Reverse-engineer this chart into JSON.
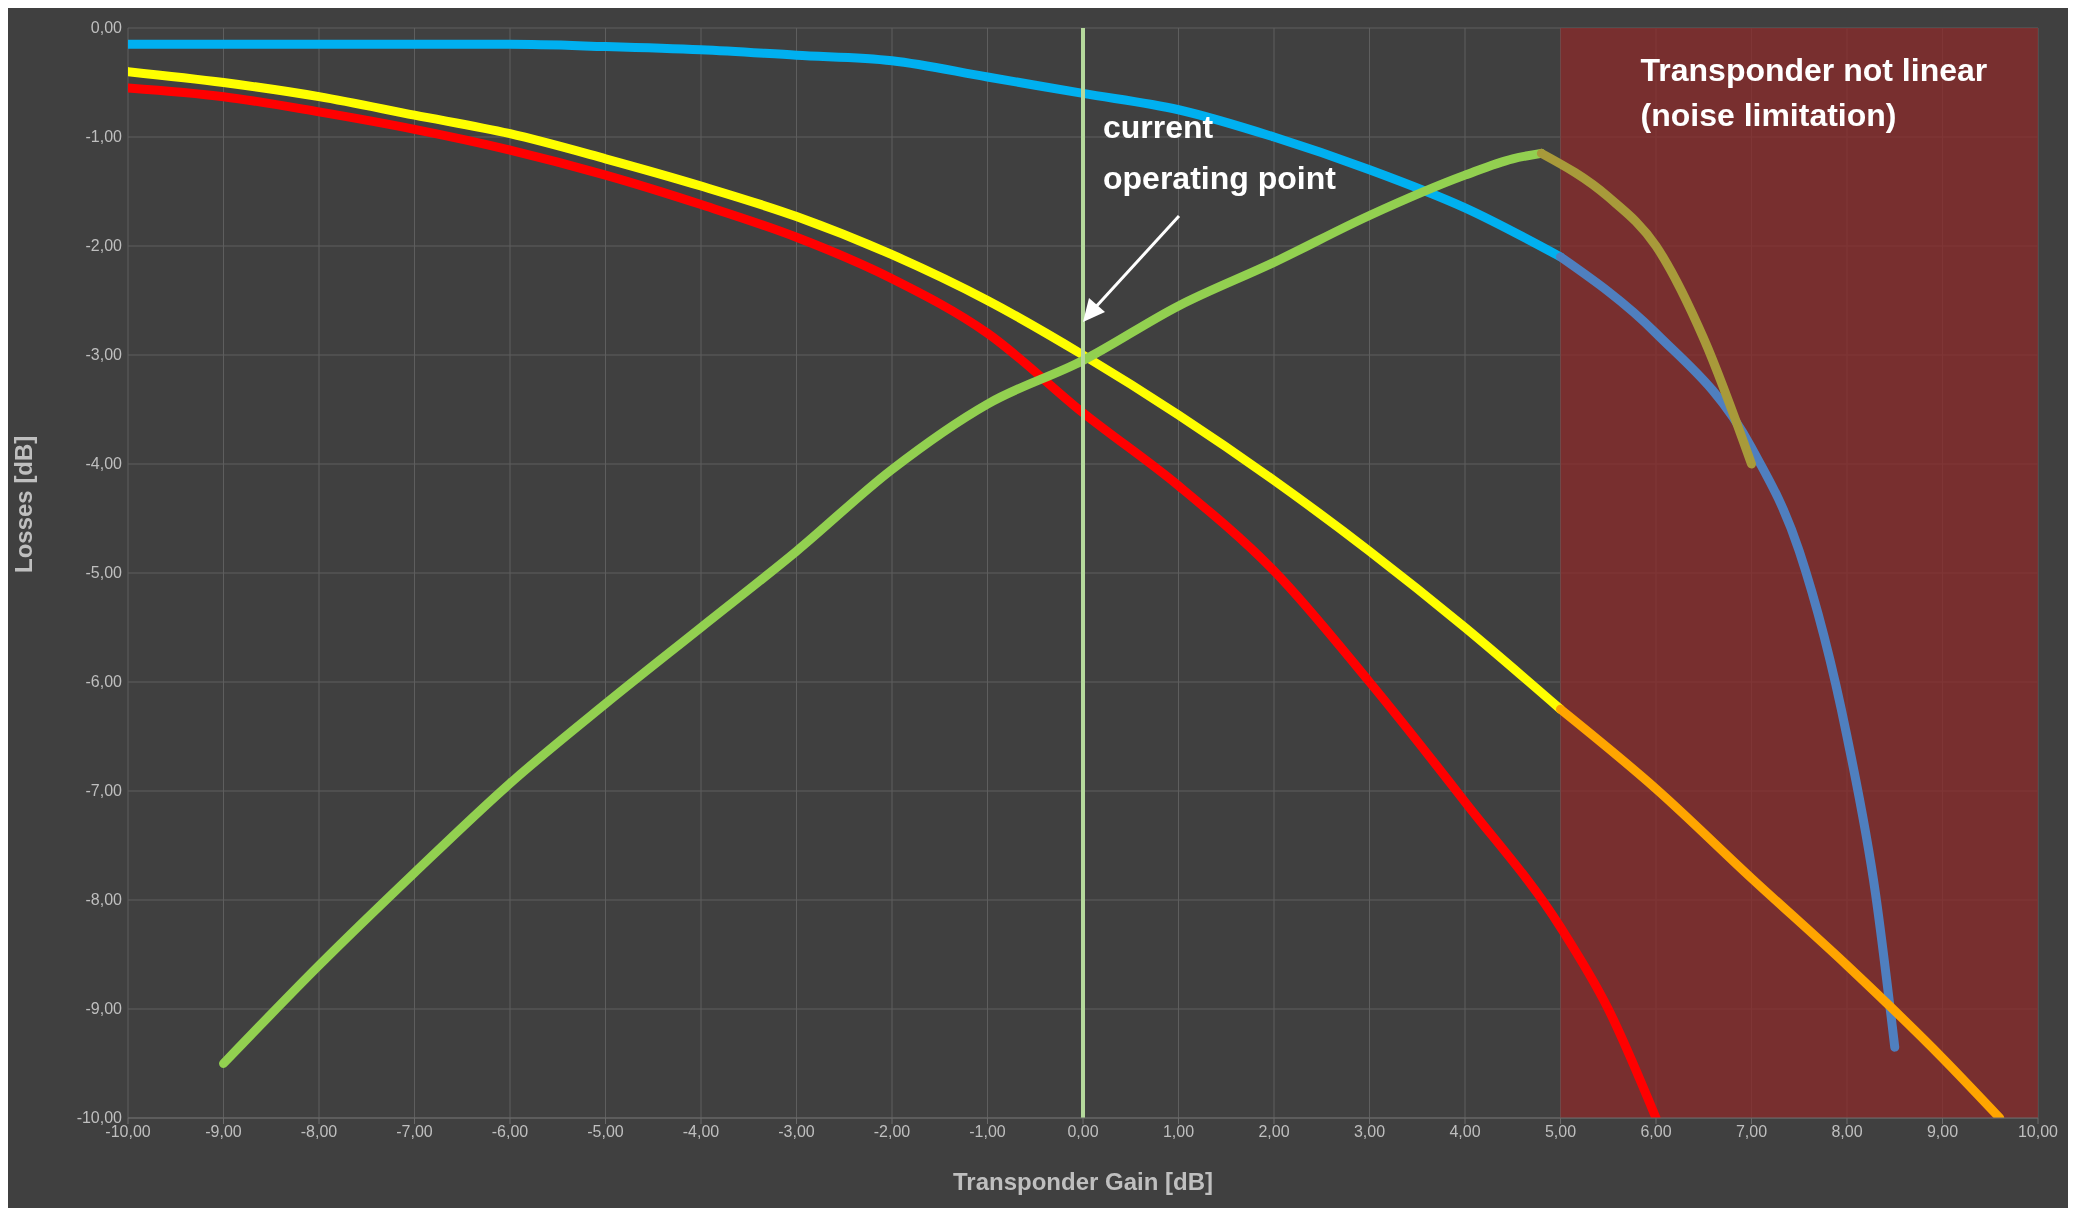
{
  "chart_data": {
    "type": "line",
    "xlabel": "Transponder Gain [dB]",
    "ylabel": "Losses [dB]",
    "xlim": [
      -10,
      10
    ],
    "ylim": [
      -10,
      0
    ],
    "xticks": [
      {
        "value": -10,
        "label": "-10,00"
      },
      {
        "value": -9,
        "label": "-9,00"
      },
      {
        "value": -8,
        "label": "-8,00"
      },
      {
        "value": -7,
        "label": "-7,00"
      },
      {
        "value": -6,
        "label": "-6,00"
      },
      {
        "value": -5,
        "label": "-5,00"
      },
      {
        "value": -4,
        "label": "-4,00"
      },
      {
        "value": -3,
        "label": "-3,00"
      },
      {
        "value": -2,
        "label": "-2,00"
      },
      {
        "value": -1,
        "label": "-1,00"
      },
      {
        "value": 0,
        "label": "0,00"
      },
      {
        "value": 1,
        "label": "1,00"
      },
      {
        "value": 2,
        "label": "2,00"
      },
      {
        "value": 3,
        "label": "3,00"
      },
      {
        "value": 4,
        "label": "4,00"
      },
      {
        "value": 5,
        "label": "5,00"
      },
      {
        "value": 6,
        "label": "6,00"
      },
      {
        "value": 7,
        "label": "7,00"
      },
      {
        "value": 8,
        "label": "8,00"
      },
      {
        "value": 9,
        "label": "9,00"
      },
      {
        "value": 10,
        "label": "10,00"
      }
    ],
    "yticks": [
      {
        "value": 0,
        "label": "0,00"
      },
      {
        "value": -1,
        "label": "-1,00"
      },
      {
        "value": -2,
        "label": "-2,00"
      },
      {
        "value": -3,
        "label": "-3,00"
      },
      {
        "value": -4,
        "label": "-4,00"
      },
      {
        "value": -5,
        "label": "-5,00"
      },
      {
        "value": -6,
        "label": "-6,00"
      },
      {
        "value": -7,
        "label": "-7,00"
      },
      {
        "value": -8,
        "label": "-8,00"
      },
      {
        "value": -9,
        "label": "-9,00"
      },
      {
        "value": -10,
        "label": "-10,00"
      }
    ],
    "grid": true,
    "marker": "none",
    "line_style": "solid",
    "series": [
      {
        "color": "#00b0f0",
        "x": [
          -10,
          -8,
          -6,
          -5,
          -4,
          -3,
          -2,
          -1,
          0,
          1,
          2,
          3,
          4,
          5
        ],
        "values": [
          -0.15,
          -0.15,
          -0.15,
          -0.17,
          -0.2,
          -0.25,
          -0.3,
          -0.45,
          -0.6,
          -0.75,
          -1.0,
          -1.3,
          -1.65,
          -2.1
        ]
      },
      {
        "color": "#4f7fbf",
        "x": [
          5,
          6,
          7,
          7.5,
          8,
          8.3,
          8.5
        ],
        "values": [
          -2.1,
          -2.8,
          -3.85,
          -4.8,
          -6.5,
          -7.95,
          -9.35
        ]
      },
      {
        "color": "#ffff00",
        "x": [
          -10,
          -9,
          -8,
          -7,
          -6,
          -5,
          -4,
          -3,
          -2,
          -1,
          0,
          1,
          2,
          3,
          4,
          5
        ],
        "values": [
          -0.4,
          -0.5,
          -0.63,
          -0.8,
          -0.97,
          -1.2,
          -1.45,
          -1.73,
          -2.08,
          -2.5,
          -3.0,
          -3.55,
          -4.15,
          -4.8,
          -5.5,
          -6.25
        ]
      },
      {
        "color": "#ffa500",
        "x": [
          5,
          6,
          7,
          8,
          9,
          9.6
        ],
        "values": [
          -6.25,
          -6.98,
          -7.8,
          -8.6,
          -9.45,
          -10
        ]
      },
      {
        "color": "#ff0000",
        "x": [
          -10,
          -9,
          -8,
          -7,
          -6,
          -5,
          -4,
          -3,
          -2,
          -1,
          0,
          1,
          2,
          3,
          4,
          5,
          5.5,
          6
        ],
        "values": [
          -0.55,
          -0.63,
          -0.77,
          -0.93,
          -1.12,
          -1.35,
          -1.62,
          -1.92,
          -2.3,
          -2.8,
          -3.53,
          -4.2,
          -4.98,
          -6.0,
          -7.1,
          -8.25,
          -9.0,
          -10
        ]
      },
      {
        "color": "#92d050",
        "x": [
          -9,
          -8,
          -7,
          -6,
          -5,
          -4,
          -3,
          -2,
          -1,
          0,
          1,
          2,
          3,
          4,
          4.5,
          4.8
        ],
        "values": [
          -9.5,
          -8.6,
          -7.75,
          -6.93,
          -6.2,
          -5.5,
          -4.8,
          -4.05,
          -3.45,
          -3.05,
          -2.55,
          -2.15,
          -1.72,
          -1.35,
          -1.2,
          -1.15
        ]
      },
      {
        "color": "#a89a3a",
        "x": [
          4.8,
          5.5,
          6,
          6.5,
          7
        ],
        "values": [
          -1.15,
          -1.55,
          -2.0,
          -2.85,
          -4.0
        ]
      }
    ],
    "bands": [
      {
        "axis": "x",
        "from": 5,
        "to": 10,
        "label": "Transponder not linear (noise limitation)",
        "color": "#8b2a2a"
      }
    ],
    "ref_lines": [
      {
        "axis": "x",
        "value": 0,
        "color": "#b5d99c"
      }
    ],
    "annotations": [
      "current operating point"
    ]
  }
}
